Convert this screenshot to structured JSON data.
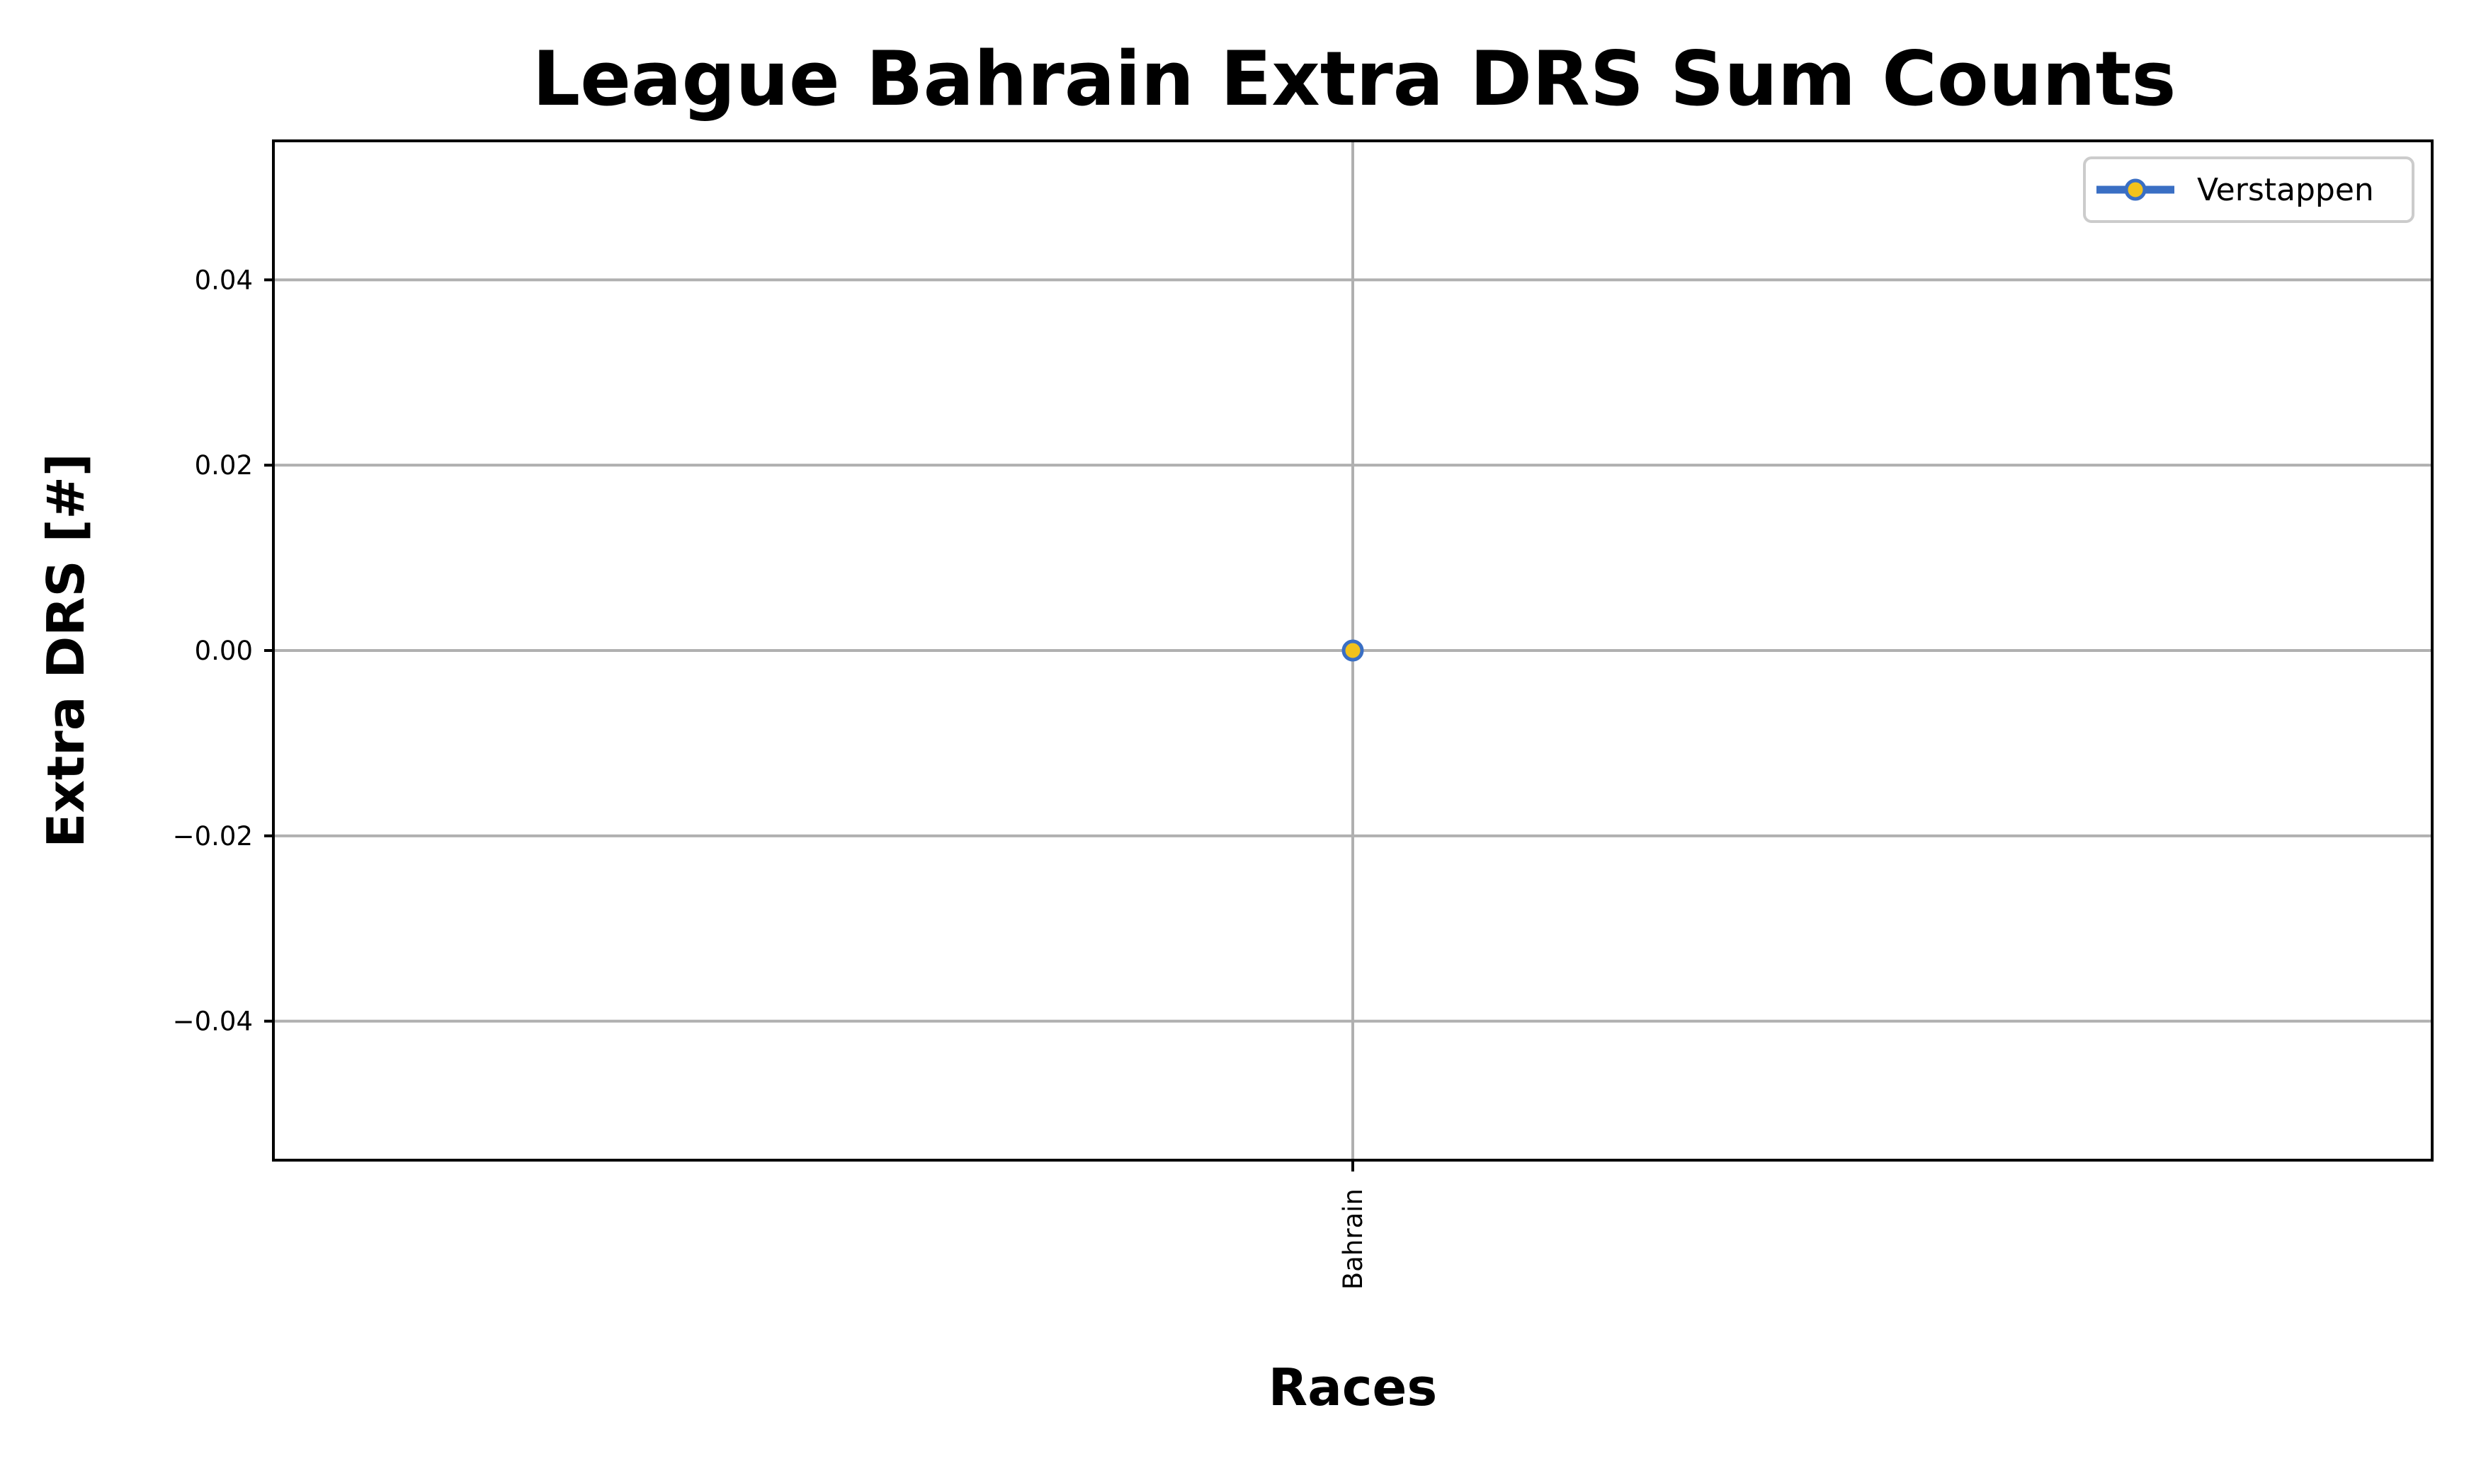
{
  "chart_data": {
    "type": "line",
    "title": "League Bahrain Extra DRS Sum Counts",
    "xlabel": "Races",
    "ylabel": "Extra DRS [#]",
    "categories": [
      "Bahrain"
    ],
    "series": [
      {
        "name": "Verstappen",
        "values": [
          0.0
        ],
        "line_color": "#3A6FC4",
        "marker_color": "#F2C21B"
      }
    ],
    "ylim": [
      -0.055,
      0.055
    ],
    "yticks": [
      -0.04,
      -0.02,
      0.0,
      0.02,
      0.04
    ],
    "ytick_labels": [
      "−0.04",
      "−0.02",
      "0.00",
      "0.02",
      "0.04"
    ],
    "grid": true,
    "legend_position": "top-right",
    "x_tick_rotation": "vertical"
  }
}
